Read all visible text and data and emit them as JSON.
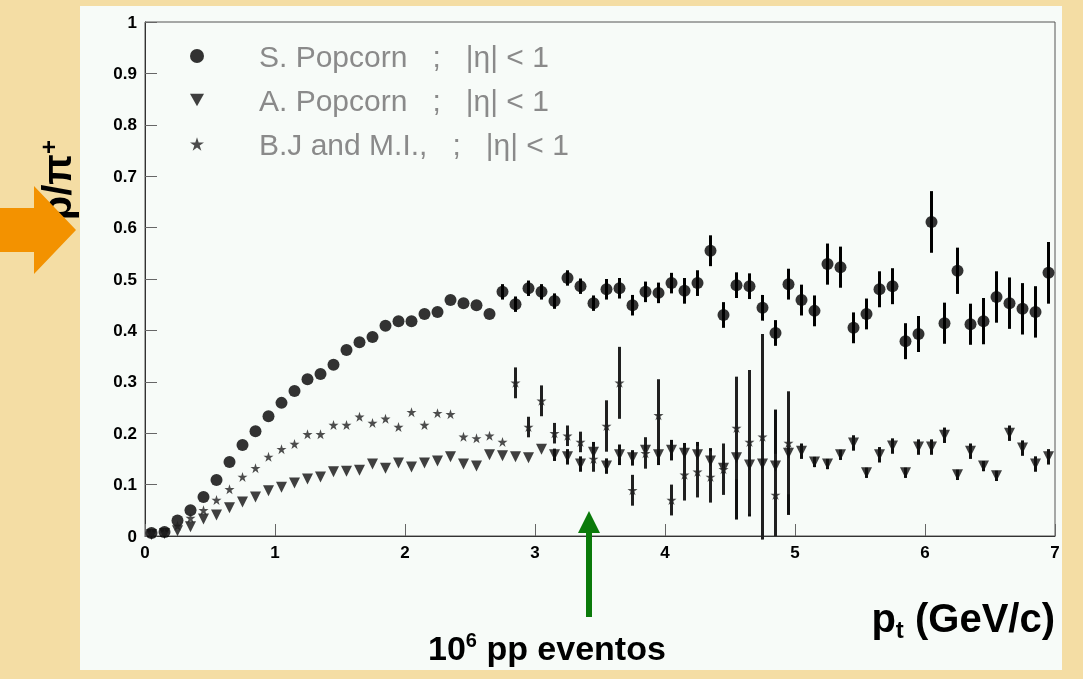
{
  "chart_data": {
    "type": "scatter",
    "ylabel": "p/π$^{+}$",
    "xlabel": "p$_{t}$ (GeV/c)",
    "annotations": [
      "10$^{6}$ pp eventos"
    ],
    "x": [
      0.05,
      0.15,
      0.25,
      0.35,
      0.45,
      0.55,
      0.65,
      0.75,
      0.85,
      0.95,
      1.05,
      1.15,
      1.25,
      1.35,
      1.45,
      1.55,
      1.65,
      1.75,
      1.85,
      1.95,
      2.05,
      2.15,
      2.25,
      2.35,
      2.45,
      2.55,
      2.65,
      2.75,
      2.85,
      2.95,
      3.05,
      3.15,
      3.25,
      3.35,
      3.45,
      3.55,
      3.65,
      3.75,
      3.85,
      3.95,
      4.05,
      4.15,
      4.25,
      4.35,
      4.45,
      4.55,
      4.65,
      4.75,
      4.85,
      4.95,
      5.05,
      5.15,
      5.25,
      5.35,
      5.45,
      5.55,
      5.65,
      5.75,
      5.85,
      5.95,
      6.05,
      6.15,
      6.25,
      6.35,
      6.45,
      6.55,
      6.65,
      6.75,
      6.85,
      6.95
    ],
    "series": [
      {
        "name": "S. Popcorn   ;   |η| < 1",
        "color": "#000000",
        "marker": "circle",
        "values": [
          0.006,
          0.008,
          0.03,
          0.05,
          0.076,
          0.109,
          0.144,
          0.177,
          0.204,
          0.233,
          0.259,
          0.282,
          0.305,
          0.315,
          0.333,
          0.362,
          0.377,
          0.387,
          0.409,
          0.418,
          0.418,
          0.432,
          0.436,
          0.459,
          0.453,
          0.449,
          0.432,
          0.475,
          0.451,
          0.482,
          0.475,
          0.457,
          0.502,
          0.486,
          0.453,
          0.48,
          0.482,
          0.449,
          0.475,
          0.473,
          0.492,
          0.477,
          0.492,
          0.555,
          0.43,
          0.488,
          0.486,
          0.444,
          0.395,
          0.49,
          0.459,
          0.438,
          0.529,
          0.523,
          0.405,
          0.432,
          0.48,
          0.486,
          0.379,
          0.393,
          0.611,
          0.414,
          0.516,
          0.412,
          0.418,
          0.465,
          0.453,
          0.442,
          0.436,
          0.512
        ],
        "errors": [
          null,
          null,
          null,
          null,
          null,
          null,
          null,
          null,
          null,
          null,
          null,
          null,
          null,
          null,
          null,
          null,
          null,
          null,
          null,
          null,
          null,
          null,
          null,
          null,
          null,
          null,
          null,
          0.015,
          0.015,
          0.015,
          0.015,
          0.015,
          0.015,
          0.015,
          0.015,
          0.02,
          0.02,
          0.02,
          0.02,
          0.02,
          0.02,
          0.025,
          0.025,
          0.03,
          0.025,
          0.025,
          0.025,
          0.025,
          0.025,
          0.03,
          0.03,
          0.03,
          0.04,
          0.04,
          0.03,
          0.03,
          0.035,
          0.035,
          0.035,
          0.035,
          0.06,
          0.04,
          0.045,
          0.04,
          0.045,
          0.05,
          0.05,
          0.05,
          0.05,
          0.06
        ]
      },
      {
        "name": "A. Popcorn   ;   |η| < 1",
        "color": "#101010",
        "marker": "triangle",
        "values": [
          0.003,
          0.005,
          0.01,
          0.018,
          0.033,
          0.041,
          0.055,
          0.066,
          0.076,
          0.088,
          0.095,
          0.103,
          0.111,
          0.115,
          0.125,
          0.126,
          0.128,
          0.14,
          0.132,
          0.142,
          0.134,
          0.142,
          0.146,
          0.154,
          0.14,
          0.136,
          0.158,
          0.156,
          0.154,
          0.152,
          0.169,
          0.158,
          0.154,
          0.14,
          0.163,
          0.136,
          0.158,
          0.152,
          0.167,
          0.158,
          0.167,
          0.161,
          0.158,
          0.146,
          0.132,
          0.152,
          0.138,
          0.14,
          0.136,
          0.161,
          0.165,
          0.144,
          0.14,
          0.158,
          0.181,
          0.123,
          0.158,
          0.175,
          0.123,
          0.173,
          0.173,
          0.196,
          0.119,
          0.165,
          0.136,
          0.117,
          0.2,
          0.171,
          0.14,
          0.154
        ],
        "errors": [
          null,
          null,
          null,
          null,
          null,
          null,
          null,
          null,
          null,
          null,
          null,
          null,
          null,
          null,
          null,
          null,
          null,
          null,
          null,
          null,
          null,
          null,
          null,
          null,
          null,
          null,
          null,
          null,
          null,
          null,
          null,
          0.012,
          0.015,
          0.015,
          0.02,
          0.015,
          0.02,
          0.015,
          0.025,
          0.02,
          0.02,
          0.02,
          0.025,
          0.025,
          0.03,
          0.12,
          0.1,
          0.12,
          0.11,
          0.12,
          0.015,
          0.01,
          0.01,
          0.01,
          0.015,
          0.01,
          0.015,
          0.015,
          0.01,
          0.015,
          0.015,
          0.015,
          0.01,
          0.015,
          0.01,
          0.01,
          0.015,
          0.015,
          0.015,
          0.015
        ]
      },
      {
        "name": "B.J and M.I.,   ;   |η| < 1",
        "color": "#202020",
        "marker": "star",
        "values": [
          0.005,
          0.006,
          0.02,
          0.035,
          0.05,
          0.07,
          0.091,
          0.115,
          0.132,
          0.154,
          0.169,
          0.179,
          0.198,
          0.198,
          0.216,
          0.216,
          0.232,
          0.22,
          0.228,
          0.212,
          0.241,
          0.216,
          0.239,
          0.237,
          0.193,
          0.19,
          0.195,
          0.183,
          0.298,
          0.212,
          0.263,
          0.2,
          0.195,
          0.183,
          0.15,
          0.214,
          0.298,
          0.089,
          0.161,
          0.235,
          0.07,
          0.119,
          0.125,
          0.115,
          0.13,
          0.21,
          0.183,
          0.193,
          0.08,
          0.181,
          null,
          null,
          null,
          null,
          null,
          null,
          null,
          null,
          null,
          null,
          null,
          null,
          null,
          null,
          null,
          null,
          null,
          null,
          null,
          null
        ],
        "errors": [
          null,
          null,
          null,
          null,
          null,
          null,
          null,
          null,
          null,
          null,
          null,
          null,
          null,
          null,
          null,
          null,
          null,
          null,
          null,
          null,
          null,
          null,
          null,
          null,
          null,
          null,
          null,
          null,
          0.03,
          0.02,
          0.03,
          0.02,
          0.02,
          0.02,
          0.025,
          0.05,
          0.07,
          0.03,
          0.03,
          0.07,
          0.03,
          0.05,
          0.05,
          0.05,
          0.05,
          0.1,
          0.14,
          0.2,
          0.08,
          0.1,
          null,
          null,
          null,
          null,
          null,
          null,
          null,
          null,
          null,
          null,
          null,
          null,
          null,
          null,
          null,
          null,
          null,
          null,
          null,
          null
        ]
      }
    ],
    "xlim": [
      0,
      7
    ],
    "xticks": [
      0,
      1,
      2,
      3,
      4,
      5,
      6,
      7
    ],
    "ylim": [
      0,
      1
    ],
    "yticks": [
      0,
      0.1,
      0.2,
      0.3,
      0.4,
      0.5,
      0.6,
      0.7,
      0.8,
      0.9,
      1
    ],
    "grid": false,
    "legend": "top left"
  }
}
